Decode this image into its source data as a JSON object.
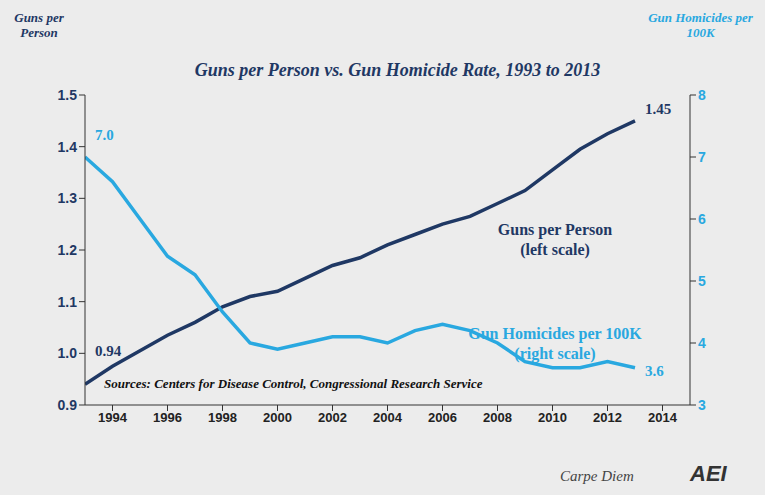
{
  "chart_data": {
    "type": "line",
    "title": "Guns per Person vs. Gun Homicide Rate, 1993 to 2013",
    "y_label": "Guns per Person",
    "y2_label": "Gun Homicides per 100K",
    "x": [
      1993,
      1994,
      1995,
      1996,
      1997,
      1998,
      1999,
      2000,
      2001,
      2002,
      2003,
      2004,
      2005,
      2006,
      2007,
      2008,
      2009,
      2010,
      2011,
      2012,
      2013
    ],
    "series": [
      {
        "name": "Guns per Person",
        "color": "#1f3864",
        "axis": "y",
        "values": [
          0.94,
          0.975,
          1.005,
          1.035,
          1.06,
          1.09,
          1.11,
          1.12,
          1.145,
          1.17,
          1.185,
          1.21,
          1.23,
          1.25,
          1.265,
          1.29,
          1.315,
          1.355,
          1.395,
          1.425,
          1.45
        ],
        "value_labels": [
          "0.94",
          null,
          null,
          null,
          null,
          null,
          null,
          null,
          null,
          null,
          null,
          null,
          null,
          null,
          null,
          null,
          null,
          null,
          null,
          null,
          "1.45"
        ]
      },
      {
        "name": "Gun Homicides per 100K",
        "color": "#29a8e0",
        "axis": "y2",
        "values": [
          7.0,
          6.6,
          6.0,
          5.4,
          5.1,
          4.5,
          4.0,
          3.9,
          4.0,
          4.1,
          4.1,
          4.0,
          4.2,
          4.3,
          4.2,
          4.0,
          3.7,
          3.6,
          3.6,
          3.7,
          3.6
        ],
        "value_labels": [
          "7.0",
          null,
          null,
          null,
          null,
          null,
          null,
          null,
          null,
          null,
          null,
          null,
          null,
          null,
          null,
          null,
          null,
          null,
          null,
          null,
          "3.6"
        ]
      }
    ],
    "xlim": [
      1993,
      2015
    ],
    "xticks": [
      1994,
      1996,
      1998,
      2000,
      2002,
      2004,
      2006,
      2008,
      2010,
      2012,
      2014
    ],
    "ylim": [
      0.9,
      1.5
    ],
    "yticks": [
      0.9,
      {
        "value": 1,
        "label": "1.0"
      },
      1.1,
      1.2,
      1.3,
      1.4,
      1.5
    ],
    "y2lim": [
      3,
      8
    ],
    "y2ticks": [
      3,
      4,
      5,
      6,
      7,
      8
    ],
    "annotations": [
      "(left scale)",
      "(right scale)",
      "Sources: Centers for Disease Control, Congressional Research Service",
      "Carpe Diem",
      "AEI"
    ],
    "grid": false
  }
}
